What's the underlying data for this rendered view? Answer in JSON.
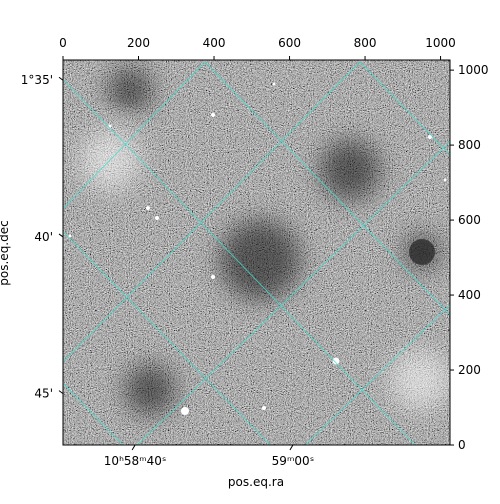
{
  "chart_data": {
    "type": "image",
    "xlabel": "pos.eq.ra",
    "ylabel": "pos.eq.dec",
    "xlim": [
      0,
      1025
    ],
    "xticks": [
      0,
      200,
      400,
      600,
      800,
      1000
    ],
    "y2lim": [
      0,
      1027
    ],
    "y2ticks": [
      0,
      200,
      400,
      600,
      800,
      1000
    ],
    "ra_ticks": [
      {
        "value": 191,
        "label": "10ʰ58ᵐ40ˢ"
      },
      {
        "value": 609,
        "label": "59ᵐ00ˢ"
      }
    ],
    "dec_ticks": [
      {
        "value": 973,
        "label": "1°35'"
      },
      {
        "value": 555,
        "label": "40'"
      },
      {
        "value": 137,
        "label": "45'"
      }
    ],
    "grid_color": "#40e0d0"
  }
}
